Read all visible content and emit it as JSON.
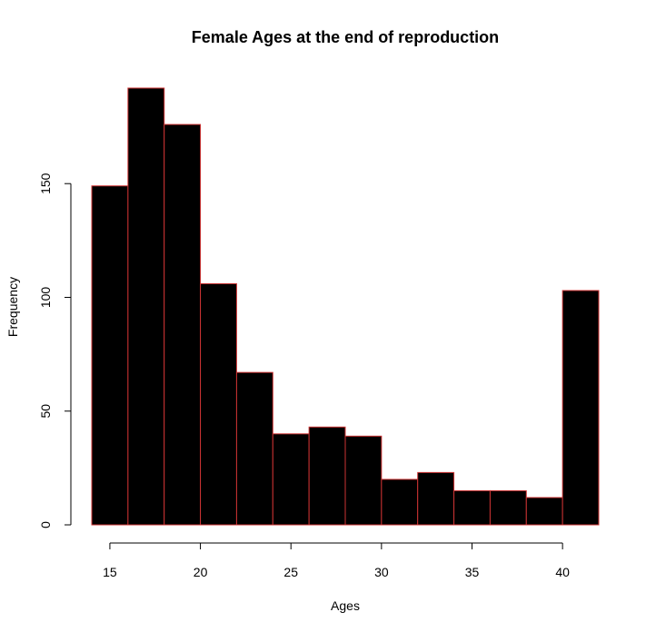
{
  "chart_data": {
    "type": "bar",
    "title": "Female Ages at the end of reproduction",
    "xlabel": "Ages",
    "ylabel": "Frequency",
    "bins": [
      {
        "start": 14,
        "end": 16,
        "count": 149
      },
      {
        "start": 16,
        "end": 18,
        "count": 192
      },
      {
        "start": 18,
        "end": 20,
        "count": 176
      },
      {
        "start": 20,
        "end": 22,
        "count": 106
      },
      {
        "start": 22,
        "end": 24,
        "count": 67
      },
      {
        "start": 24,
        "end": 26,
        "count": 40
      },
      {
        "start": 26,
        "end": 28,
        "count": 43
      },
      {
        "start": 28,
        "end": 30,
        "count": 39
      },
      {
        "start": 30,
        "end": 32,
        "count": 20
      },
      {
        "start": 32,
        "end": 34,
        "count": 23
      },
      {
        "start": 34,
        "end": 36,
        "count": 15
      },
      {
        "start": 36,
        "end": 38,
        "count": 15
      },
      {
        "start": 38,
        "end": 40,
        "count": 12
      },
      {
        "start": 40,
        "end": 42,
        "count": 103
      }
    ],
    "xticks": [
      15,
      20,
      25,
      30,
      35,
      40
    ],
    "yticks": [
      0,
      50,
      100,
      150
    ],
    "xlim": [
      14,
      42
    ],
    "ylim": [
      0,
      192
    ],
    "grid": false,
    "bar_fill": "#000000",
    "bar_border": "#cc3333"
  }
}
